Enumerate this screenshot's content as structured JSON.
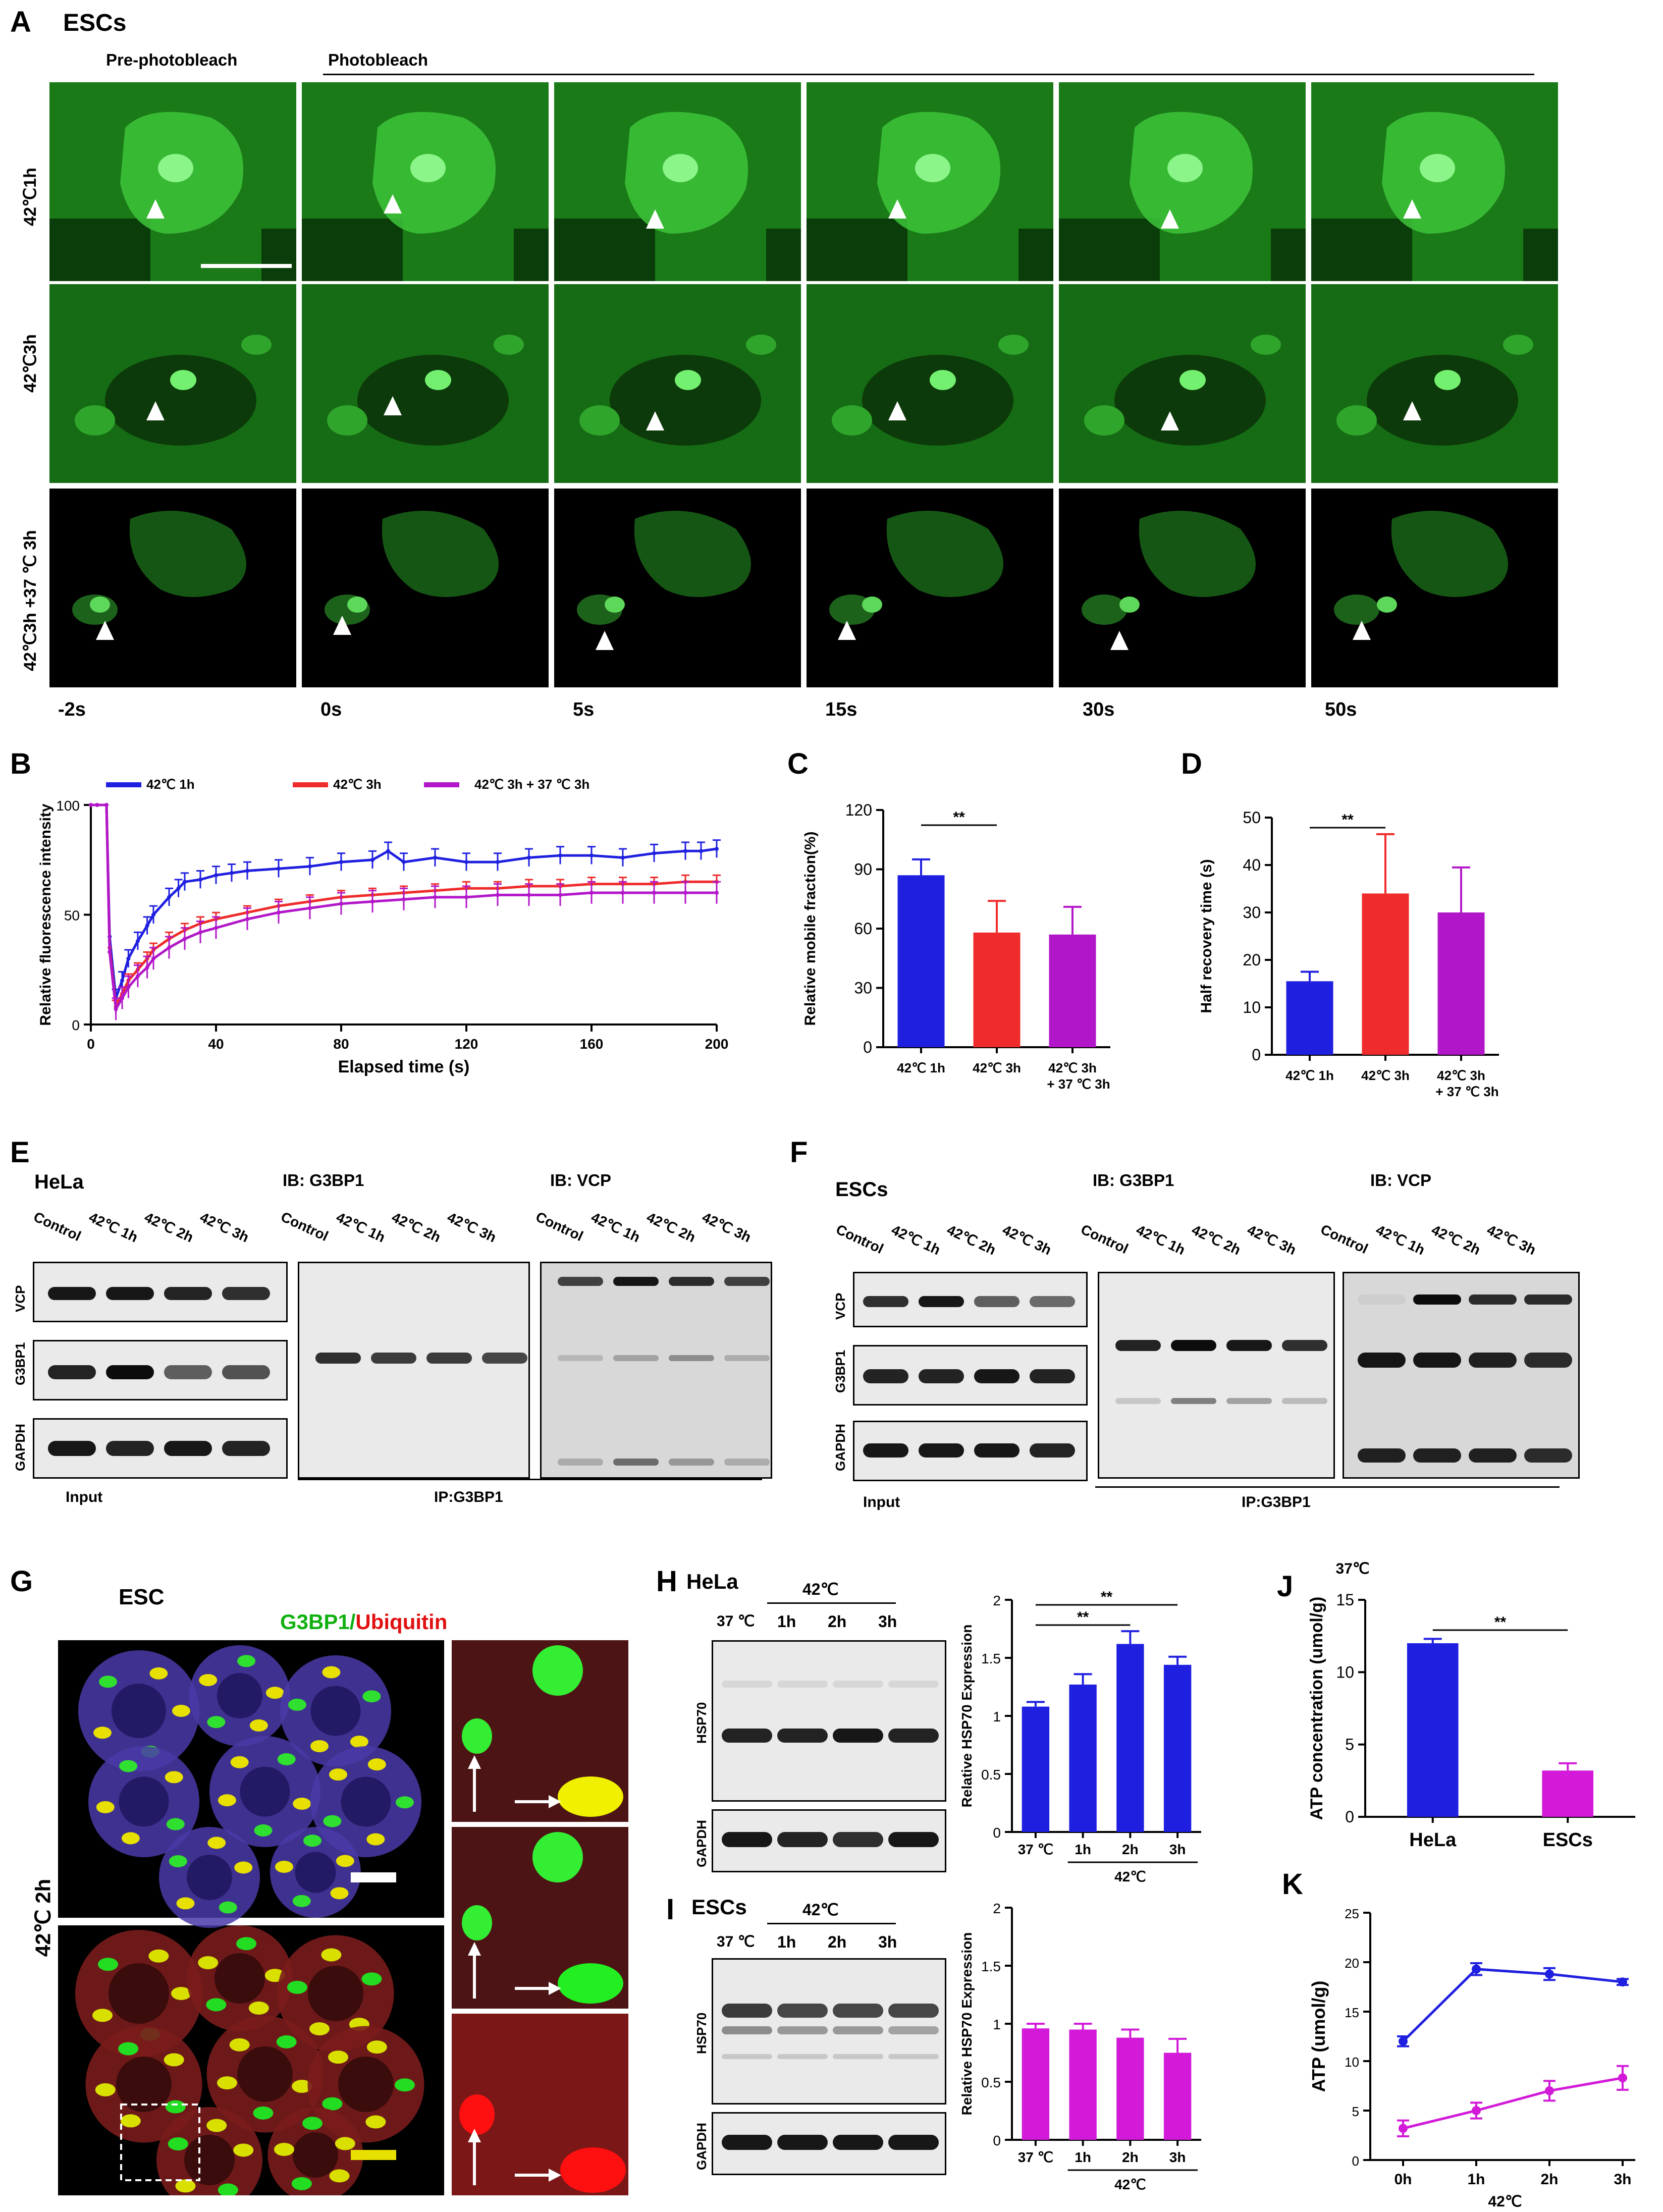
{
  "panel_letters": [
    "A",
    "B",
    "C",
    "D",
    "E",
    "F",
    "G",
    "H",
    "I",
    "J",
    "K"
  ],
  "A": {
    "cell_label": "ESCs",
    "pre_label": "Pre-photobleach",
    "bleach_label": "Photobleach",
    "rows": [
      "42℃1h",
      "42℃3h",
      "42℃3h +37 ℃ 3h"
    ],
    "times": [
      "-2s",
      "0s",
      "5s",
      "15s",
      "30s",
      "50s"
    ]
  },
  "B": {
    "ylabel": "Relative fluorescence intensity",
    "xlabel": "Elapsed time (s)",
    "legend": [
      {
        "label": "42℃ 1h",
        "color": "#1f1fe0"
      },
      {
        "label": "42℃ 3h",
        "color": "#ef2b2b"
      },
      {
        "label": "42℃ 3h  + 37 ℃ 3h",
        "color": "#b216c9"
      }
    ]
  },
  "chart_data": [
    {
      "panel": "B",
      "type": "line",
      "xlabel": "Elapsed time (s)",
      "ylabel": "Relative fluorescence intensity",
      "xlim": [
        0,
        200
      ],
      "ylim": [
        0,
        100
      ],
      "xticks": [
        0,
        40,
        80,
        120,
        160,
        200
      ],
      "yticks": [
        0,
        50,
        100
      ],
      "series": [
        {
          "name": "42℃ 1h",
          "color": "#1f1fe0",
          "x": [
            0,
            2,
            5,
            6,
            8,
            10,
            12,
            15,
            18,
            20,
            25,
            28,
            30,
            35,
            40,
            45,
            50,
            60,
            70,
            80,
            90,
            95,
            100,
            110,
            120,
            130,
            140,
            150,
            160,
            170,
            180,
            190,
            195,
            200
          ],
          "y": [
            100,
            100,
            100,
            40,
            12,
            20,
            30,
            38,
            45,
            50,
            58,
            62,
            65,
            66,
            68,
            69,
            70,
            71,
            72,
            74,
            75,
            79,
            74,
            76,
            74,
            74,
            76,
            77,
            77,
            76,
            78,
            79,
            79,
            80
          ],
          "err": 4
        },
        {
          "name": "42℃ 3h",
          "color": "#ef2b2b",
          "x": [
            0,
            2,
            5,
            6,
            8,
            10,
            12,
            15,
            18,
            20,
            25,
            30,
            35,
            40,
            50,
            60,
            70,
            80,
            90,
            100,
            110,
            120,
            130,
            140,
            150,
            160,
            170,
            180,
            190,
            200
          ],
          "y": [
            100,
            100,
            100,
            35,
            8,
            14,
            20,
            25,
            30,
            34,
            39,
            43,
            46,
            48,
            51,
            54,
            56,
            58,
            59,
            60,
            61,
            62,
            62,
            63,
            63,
            64,
            64,
            64,
            65,
            65
          ],
          "err": 3
        },
        {
          "name": "42℃ 3h  + 37 ℃ 3h",
          "color": "#b216c9",
          "x": [
            0,
            2,
            5,
            6,
            8,
            10,
            12,
            15,
            18,
            20,
            25,
            30,
            35,
            40,
            50,
            60,
            70,
            80,
            90,
            100,
            110,
            120,
            130,
            140,
            150,
            160,
            170,
            180,
            190,
            200
          ],
          "y": [
            100,
            100,
            100,
            33,
            7,
            12,
            17,
            22,
            26,
            30,
            35,
            39,
            42,
            44,
            48,
            51,
            53,
            55,
            56,
            57,
            58,
            58,
            59,
            59,
            59,
            60,
            60,
            60,
            60,
            60
          ],
          "err": 5
        }
      ]
    },
    {
      "panel": "C",
      "type": "bar",
      "ylabel": "Relative mobile fraction(%)",
      "ylim": [
        0,
        120
      ],
      "yticks": [
        0,
        30,
        60,
        90,
        120
      ],
      "categories": [
        "42℃ 1h",
        "42℃ 3h",
        "42℃ 3h\n+ 37 ℃ 3h"
      ],
      "values": [
        87,
        58,
        57
      ],
      "errors": [
        8,
        16,
        14
      ],
      "colors": [
        "#1f1fe0",
        "#ef2b2b",
        "#b216c9"
      ],
      "sig": {
        "from": 0,
        "to": 1,
        "label": "**"
      }
    },
    {
      "panel": "D",
      "type": "bar",
      "ylabel": "Half recovery time (s)",
      "ylim": [
        0,
        50
      ],
      "yticks": [
        0,
        10,
        20,
        30,
        40,
        50
      ],
      "categories": [
        "42℃ 1h",
        "42℃ 3h",
        "42℃ 3h\n+ 37 ℃ 3h"
      ],
      "values": [
        15.5,
        34,
        30
      ],
      "errors": [
        2,
        12.5,
        9.5
      ],
      "colors": [
        "#1f1fe0",
        "#ef2b2b",
        "#b216c9"
      ],
      "sig": {
        "from": 0,
        "to": 1,
        "label": "**"
      }
    },
    {
      "panel": "H",
      "type": "bar",
      "ylabel": "Relative HSP70 Expression",
      "ylim": [
        0,
        2.0
      ],
      "yticks": [
        0.0,
        0.5,
        1.0,
        1.5,
        2.0
      ],
      "categories": [
        "37 ℃",
        "1h",
        "2h",
        "3h"
      ],
      "group_label": "42℃",
      "values": [
        1.08,
        1.27,
        1.62,
        1.44
      ],
      "errors": [
        0.04,
        0.09,
        0.11,
        0.07
      ],
      "colors": [
        "#1f1fe0",
        "#1f1fe0",
        "#1f1fe0",
        "#1f1fe0"
      ],
      "sigs": [
        {
          "from": 0,
          "to": 2,
          "label": "**"
        },
        {
          "from": 0,
          "to": 3,
          "label": "**"
        }
      ]
    },
    {
      "panel": "I",
      "type": "bar",
      "ylabel": "Relative HSP70 Expression",
      "ylim": [
        0,
        2.0
      ],
      "yticks": [
        0.0,
        0.5,
        1.0,
        1.5,
        2.0
      ],
      "categories": [
        "37 ℃",
        "1h",
        "2h",
        "3h"
      ],
      "group_label": "42℃",
      "values": [
        0.96,
        0.95,
        0.88,
        0.75
      ],
      "errors": [
        0.04,
        0.05,
        0.07,
        0.12
      ],
      "colors": [
        "#d21ad8",
        "#d21ad8",
        "#d21ad8",
        "#d21ad8"
      ]
    },
    {
      "panel": "J",
      "type": "bar",
      "ylabel": "ATP concentration (umol/g)",
      "title": "37℃",
      "ylim": [
        0,
        15
      ],
      "yticks": [
        0,
        5,
        10,
        15
      ],
      "categories": [
        "HeLa",
        "ESCs"
      ],
      "values": [
        12,
        3.2
      ],
      "errors": [
        0.3,
        0.5
      ],
      "colors": [
        "#1f1fe0",
        "#d21ad8"
      ],
      "sig": {
        "from": 0,
        "to": 1,
        "label": "**"
      }
    },
    {
      "panel": "K",
      "type": "line",
      "ylabel": "ATP (umol/g)",
      "xlabel": "42℃",
      "ylim": [
        0,
        25
      ],
      "yticks": [
        0,
        5,
        10,
        15,
        20,
        25
      ],
      "categories": [
        "0h",
        "1h",
        "2h",
        "3h"
      ],
      "series": [
        {
          "color": "#1f1fe0",
          "values": [
            12,
            19.3,
            18.8,
            18
          ],
          "errors": [
            0.5,
            0.6,
            0.6,
            0.3
          ]
        },
        {
          "color": "#d21ad8",
          "values": [
            3.2,
            5,
            7,
            8.3
          ],
          "errors": [
            0.8,
            0.8,
            1.0,
            1.2
          ]
        }
      ]
    }
  ],
  "E": {
    "cell_label": "HeLa",
    "ib1": "IB: G3BP1",
    "ib2": "IB: VCP",
    "lanes": [
      "Control",
      "42℃ 1h",
      "42℃ 2h",
      "42℃ 3h"
    ],
    "rows": [
      "VCP",
      "G3BP1",
      "GAPDH"
    ],
    "input": "Input",
    "ip": "IP:G3BP1"
  },
  "F": {
    "cell_label": "ESCs",
    "ib1": "IB: G3BP1",
    "ib2": "IB: VCP",
    "lanes": [
      "Control",
      "42℃ 1h",
      "42℃ 2h",
      "42℃ 3h"
    ],
    "rows": [
      "VCP",
      "G3BP1",
      "GAPDH"
    ],
    "input": "Input",
    "ip": "IP:G3BP1"
  },
  "G": {
    "cell_label": "ESC",
    "stain_green": "G3BP1",
    "stain_slash": "/",
    "stain_red": "Ubiquitin",
    "row_label": "42℃ 2h"
  },
  "H": {
    "cell_label": "HeLa",
    "temp": "42℃",
    "lane37": "37 ℃",
    "lanes": [
      "1h",
      "2h",
      "3h"
    ],
    "rows": [
      "HSP70",
      "GAPDH"
    ]
  },
  "I": {
    "cell_label": "ESCs",
    "temp": "42℃",
    "lane37": "37 ℃",
    "lanes": [
      "1h",
      "2h",
      "3h"
    ],
    "rows": [
      "HSP70",
      "GAPDH"
    ]
  }
}
